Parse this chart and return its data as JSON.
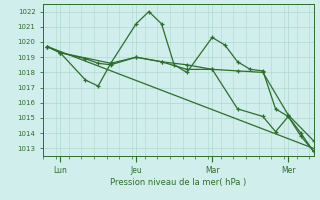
{
  "bg_color": "#d0eeeb",
  "grid_color": "#b0d8d0",
  "line_color": "#2d6e2d",
  "xlabel": "Pression niveau de la mer( hPa )",
  "ylim": [
    1012.5,
    1022.5
  ],
  "yticks": [
    1013,
    1014,
    1015,
    1016,
    1017,
    1018,
    1019,
    1020,
    1021,
    1022
  ],
  "day_labels": [
    "Lun",
    "Jeu",
    "Mar",
    "Mer"
  ],
  "day_positions": [
    8,
    44,
    80,
    116
  ],
  "xlim": [
    0,
    128
  ],
  "series1_x": [
    2,
    8,
    20,
    26,
    32,
    44,
    50,
    56,
    62,
    68,
    80,
    86,
    92,
    98,
    104,
    110,
    116,
    122,
    128
  ],
  "series1_y": [
    1019.7,
    1019.3,
    1017.5,
    1017.1,
    1018.6,
    1021.2,
    1022.0,
    1021.2,
    1018.5,
    1018.0,
    1020.3,
    1019.8,
    1018.7,
    1018.2,
    1018.1,
    1015.6,
    1015.1,
    1014.0,
    1012.8
  ],
  "series2_x": [
    2,
    8,
    20,
    26,
    32,
    44,
    56,
    68,
    80,
    92,
    104,
    116,
    128
  ],
  "series2_y": [
    1019.7,
    1019.3,
    1018.9,
    1018.6,
    1018.5,
    1019.0,
    1018.7,
    1018.5,
    1018.2,
    1018.1,
    1018.0,
    1015.2,
    1013.5
  ],
  "series3_x": [
    2,
    128
  ],
  "series3_y": [
    1019.7,
    1013.0
  ],
  "series4_x": [
    2,
    8,
    32,
    44,
    56,
    68,
    80,
    92,
    104,
    110,
    116,
    122,
    128
  ],
  "series4_y": [
    1019.7,
    1019.3,
    1018.6,
    1019.0,
    1018.7,
    1018.2,
    1018.2,
    1015.6,
    1015.1,
    1014.1,
    1015.1,
    1013.8,
    1012.8
  ]
}
